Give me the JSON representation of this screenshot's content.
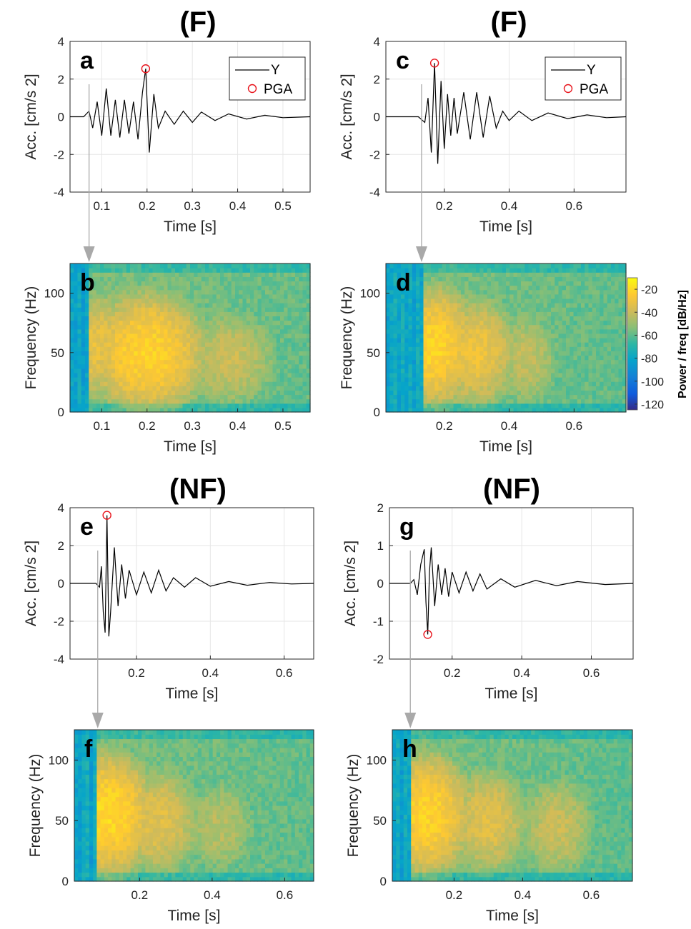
{
  "colors": {
    "trace": "#000000",
    "pga_marker": "#e8141c",
    "arrow": "#a9a9a9",
    "grid": "#e6e6e6"
  },
  "colorbar": {
    "label": "Power / freq [dB/Hz]",
    "ticks": [
      "-20",
      "-40",
      "-60",
      "-80",
      "-100",
      "-120"
    ],
    "range": [
      -125,
      -10
    ],
    "colormap": "parula"
  },
  "chart_data": [
    {
      "panel": "a",
      "section_title": "(F)",
      "type": "line",
      "xlabel": "Time [s]",
      "ylabel": "Acc. [cm/s 2]",
      "xlim": [
        0.03,
        0.56
      ],
      "ylim": [
        -4,
        4
      ],
      "xticks": [
        "0.1",
        "0.2",
        "0.3",
        "0.4",
        "0.5"
      ],
      "xtick_values": [
        0.1,
        0.2,
        0.3,
        0.4,
        0.5
      ],
      "yticks": [
        "4",
        "2",
        "0",
        "-2",
        "-4"
      ],
      "ytick_values": [
        4,
        2,
        0,
        -2,
        -4
      ],
      "legend": {
        "entries": [
          "Y",
          "PGA"
        ],
        "position": "top-right"
      },
      "pga": {
        "t": 0.197,
        "a": 2.55
      },
      "arrival": 0.072,
      "series": [
        {
          "name": "Y",
          "x": [
            0.03,
            0.06,
            0.072,
            0.08,
            0.09,
            0.1,
            0.11,
            0.12,
            0.13,
            0.14,
            0.15,
            0.16,
            0.17,
            0.18,
            0.19,
            0.197,
            0.205,
            0.215,
            0.225,
            0.24,
            0.26,
            0.28,
            0.3,
            0.32,
            0.35,
            0.38,
            0.42,
            0.46,
            0.5,
            0.56
          ],
          "y": [
            0,
            0,
            0.3,
            -0.6,
            0.8,
            -1.0,
            1.5,
            -1.0,
            0.9,
            -1.1,
            0.9,
            -0.9,
            0.8,
            -1.2,
            1.3,
            2.55,
            -1.9,
            1.2,
            -0.6,
            0.3,
            -0.4,
            0.3,
            -0.3,
            0.25,
            -0.2,
            0.15,
            -0.12,
            0.08,
            -0.05,
            0
          ]
        }
      ]
    },
    {
      "panel": "b",
      "type": "heatmap",
      "xlabel": "Time [s]",
      "ylabel": "Frequency (Hz)",
      "xlim": [
        0.03,
        0.56
      ],
      "ylim": [
        0,
        125
      ],
      "xticks": [
        "0.1",
        "0.2",
        "0.3",
        "0.4",
        "0.5"
      ],
      "xtick_values": [
        0.1,
        0.2,
        0.3,
        0.4,
        0.5
      ],
      "yticks": [
        "100",
        "50",
        "0"
      ],
      "ytick_values": [
        100,
        50,
        0
      ],
      "onset": 0.072,
      "energy_peaks": [
        {
          "t": 0.09,
          "f": 55,
          "db": -32
        },
        {
          "t": 0.2,
          "f": 50,
          "db": -22
        },
        {
          "t": 0.38,
          "f": 45,
          "db": -40
        }
      ]
    },
    {
      "panel": "c",
      "section_title": "(F)",
      "type": "line",
      "xlabel": "Time [s]",
      "ylabel": "Acc. [cm/s 2]",
      "xlim": [
        0.02,
        0.76
      ],
      "ylim": [
        -4,
        4
      ],
      "xticks": [
        "0.2",
        "0.4",
        "0.6"
      ],
      "xtick_values": [
        0.2,
        0.4,
        0.6
      ],
      "yticks": [
        "4",
        "2",
        "0",
        "-2",
        "-4"
      ],
      "ytick_values": [
        4,
        2,
        0,
        -2,
        -4
      ],
      "legend": {
        "entries": [
          "Y",
          "PGA"
        ],
        "position": "top-right"
      },
      "pga": {
        "t": 0.17,
        "a": 2.85
      },
      "arrival": 0.13,
      "series": [
        {
          "name": "Y",
          "x": [
            0.02,
            0.12,
            0.14,
            0.15,
            0.16,
            0.17,
            0.18,
            0.19,
            0.2,
            0.21,
            0.22,
            0.23,
            0.24,
            0.26,
            0.28,
            0.3,
            0.32,
            0.34,
            0.36,
            0.38,
            0.4,
            0.43,
            0.47,
            0.52,
            0.58,
            0.64,
            0.7,
            0.76
          ],
          "y": [
            0,
            0,
            -0.3,
            1.0,
            -1.9,
            2.85,
            -2.5,
            1.9,
            -1.7,
            1.2,
            -1.0,
            1.0,
            -0.9,
            1.3,
            -1.2,
            1.3,
            -1.1,
            1.1,
            -0.6,
            0.3,
            -0.2,
            0.3,
            -0.2,
            0.2,
            -0.1,
            0.1,
            -0.05,
            0
          ]
        }
      ]
    },
    {
      "panel": "d",
      "type": "heatmap",
      "xlabel": "Time [s]",
      "ylabel": "Frequency (Hz)",
      "xlim": [
        0.02,
        0.76
      ],
      "ylim": [
        0,
        125
      ],
      "xticks": [
        "0.2",
        "0.4",
        "0.6"
      ],
      "xtick_values": [
        0.2,
        0.4,
        0.6
      ],
      "yticks": [
        "100",
        "50",
        "0"
      ],
      "ytick_values": [
        100,
        50,
        0
      ],
      "onset": 0.13,
      "energy_peaks": [
        {
          "t": 0.17,
          "f": 55,
          "db": -22
        },
        {
          "t": 0.3,
          "f": 50,
          "db": -30
        },
        {
          "t": 0.45,
          "f": 45,
          "db": -42
        }
      ]
    },
    {
      "panel": "e",
      "section_title": "(NF)",
      "type": "line",
      "xlabel": "Time [s]",
      "ylabel": "Acc. [cm/s 2]",
      "xlim": [
        0.02,
        0.68
      ],
      "ylim": [
        -4,
        4
      ],
      "xticks": [
        "0.2",
        "0.4",
        "0.6"
      ],
      "xtick_values": [
        0.2,
        0.4,
        0.6
      ],
      "yticks": [
        "4",
        "2",
        "0",
        "-2",
        "-4"
      ],
      "ytick_values": [
        4,
        2,
        0,
        -2,
        -4
      ],
      "pga": {
        "t": 0.12,
        "a": 3.6
      },
      "arrival": 0.095,
      "series": [
        {
          "name": "Y",
          "x": [
            0.02,
            0.09,
            0.1,
            0.105,
            0.11,
            0.115,
            0.12,
            0.125,
            0.13,
            0.14,
            0.15,
            0.16,
            0.17,
            0.18,
            0.2,
            0.22,
            0.24,
            0.26,
            0.28,
            0.3,
            0.33,
            0.36,
            0.4,
            0.45,
            0.5,
            0.56,
            0.62,
            0.68
          ],
          "y": [
            0,
            0,
            -0.2,
            0.9,
            -1.5,
            -2.6,
            3.6,
            -2.8,
            -1.5,
            1.9,
            -1.2,
            1.0,
            -0.8,
            0.7,
            -0.6,
            0.6,
            -0.5,
            0.7,
            -0.4,
            0.3,
            -0.2,
            0.3,
            -0.15,
            0.1,
            -0.1,
            0.05,
            -0.03,
            0
          ]
        }
      ]
    },
    {
      "panel": "f",
      "type": "heatmap",
      "xlabel": "Time [s]",
      "ylabel": "Frequency (Hz)",
      "xlim": [
        0.02,
        0.68
      ],
      "ylim": [
        0,
        125
      ],
      "xticks": [
        "0.2",
        "0.4",
        "0.6"
      ],
      "xtick_values": [
        0.2,
        0.4,
        0.6
      ],
      "yticks": [
        "100",
        "50",
        "0"
      ],
      "ytick_values": [
        100,
        50,
        0
      ],
      "onset": 0.085,
      "energy_peaks": [
        {
          "t": 0.11,
          "f": 55,
          "db": -20
        },
        {
          "t": 0.25,
          "f": 50,
          "db": -34
        },
        {
          "t": 0.42,
          "f": 45,
          "db": -44
        }
      ]
    },
    {
      "panel": "g",
      "section_title": "(NF)",
      "type": "line",
      "xlabel": "Time [s]",
      "ylabel": "Acc. [cm/s 2]",
      "xlim": [
        0.02,
        0.72
      ],
      "ylim": [
        -2,
        2
      ],
      "xticks": [
        "0.2",
        "0.4",
        "0.6"
      ],
      "xtick_values": [
        0.2,
        0.4,
        0.6
      ],
      "yticks": [
        "2",
        "1",
        "0",
        "-1",
        "-2"
      ],
      "ytick_values": [
        2,
        1,
        0,
        -1,
        -2
      ],
      "pga": {
        "t": 0.13,
        "a": -1.35
      },
      "arrival": 0.08,
      "series": [
        {
          "name": "Y",
          "x": [
            0.02,
            0.08,
            0.09,
            0.1,
            0.11,
            0.12,
            0.125,
            0.13,
            0.135,
            0.14,
            0.15,
            0.16,
            0.17,
            0.18,
            0.19,
            0.2,
            0.22,
            0.24,
            0.26,
            0.28,
            0.3,
            0.34,
            0.38,
            0.44,
            0.5,
            0.56,
            0.64,
            0.72
          ],
          "y": [
            0,
            0,
            0.1,
            -0.3,
            0.5,
            0.9,
            -0.5,
            -1.35,
            0.3,
            0.95,
            -0.6,
            0.5,
            -0.3,
            0.4,
            -0.35,
            0.3,
            -0.25,
            0.3,
            -0.2,
            0.25,
            -0.15,
            0.12,
            -0.1,
            0.08,
            -0.06,
            0.05,
            -0.03,
            0
          ]
        }
      ]
    },
    {
      "panel": "h",
      "type": "heatmap",
      "xlabel": "Time [s]",
      "ylabel": "Frequency (Hz)",
      "xlim": [
        0.02,
        0.72
      ],
      "ylim": [
        0,
        125
      ],
      "xticks": [
        "0.2",
        "0.4",
        "0.6"
      ],
      "xtick_values": [
        0.2,
        0.4,
        0.6
      ],
      "yticks": [
        "100",
        "50",
        "0"
      ],
      "ytick_values": [
        100,
        50,
        0
      ],
      "onset": 0.075,
      "energy_peaks": [
        {
          "t": 0.12,
          "f": 55,
          "db": -22
        },
        {
          "t": 0.3,
          "f": 50,
          "db": -34
        },
        {
          "t": 0.5,
          "f": 45,
          "db": -40
        }
      ]
    }
  ]
}
